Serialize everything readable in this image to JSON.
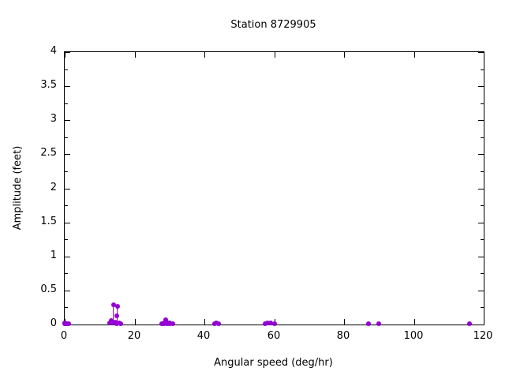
{
  "page": {
    "background": "#ffffff",
    "text_color": "#000000"
  },
  "chart_data": {
    "type": "scatter",
    "style": "points-with-impulses",
    "title": "Station 8729905",
    "xlabel": "Angular speed (deg/hr)",
    "ylabel": "Amplitude (feet)",
    "xlim": [
      0,
      120
    ],
    "ylim": [
      0,
      4
    ],
    "x_major_ticks": [
      0,
      20,
      40,
      60,
      80,
      100,
      120
    ],
    "x_tick_labels": [
      "0",
      "20",
      "40",
      "60",
      "80",
      "100",
      "120"
    ],
    "y_major_ticks": [
      0,
      0.5,
      1,
      1.5,
      2,
      2.5,
      3,
      3.5,
      4
    ],
    "y_tick_labels": [
      "0",
      "0.5",
      "1",
      "1.5",
      "2",
      "2.5",
      "3",
      "3.5",
      "4"
    ],
    "y_minor_ticks": [
      0.25,
      0.75,
      1.25,
      1.75,
      2.25,
      2.75,
      3.25,
      3.75
    ],
    "grid": false,
    "legend": false,
    "border_color": "#000000",
    "marker_color": "#9400d3",
    "points": [
      [
        0.041,
        0.02
      ],
      [
        0.082,
        0.01
      ],
      [
        0.544,
        0.01
      ],
      [
        1.016,
        0.01
      ],
      [
        1.098,
        0.01
      ],
      [
        12.854,
        0.02
      ],
      [
        13.399,
        0.06
      ],
      [
        13.472,
        0.02
      ],
      [
        13.943,
        0.29
      ],
      [
        14.497,
        0.03
      ],
      [
        14.959,
        0.13
      ],
      [
        15.0,
        0.01
      ],
      [
        15.041,
        0.27
      ],
      [
        15.585,
        0.02
      ],
      [
        16.139,
        0.01
      ],
      [
        27.895,
        0.01
      ],
      [
        27.968,
        0.01
      ],
      [
        28.44,
        0.02
      ],
      [
        28.512,
        0.01
      ],
      [
        28.984,
        0.07
      ],
      [
        29.456,
        0.01
      ],
      [
        29.528,
        0.02
      ],
      [
        29.959,
        0.01
      ],
      [
        30.0,
        0.02
      ],
      [
        30.041,
        0.01
      ],
      [
        30.082,
        0.02
      ],
      [
        31.016,
        0.01
      ],
      [
        42.927,
        0.01
      ],
      [
        43.476,
        0.02
      ],
      [
        44.025,
        0.01
      ],
      [
        57.424,
        0.01
      ],
      [
        57.968,
        0.02
      ],
      [
        58.984,
        0.02
      ],
      [
        60.0,
        0.01
      ],
      [
        86.952,
        0.01
      ],
      [
        90.0,
        0.01
      ],
      [
        115.936,
        0.01
      ]
    ]
  }
}
